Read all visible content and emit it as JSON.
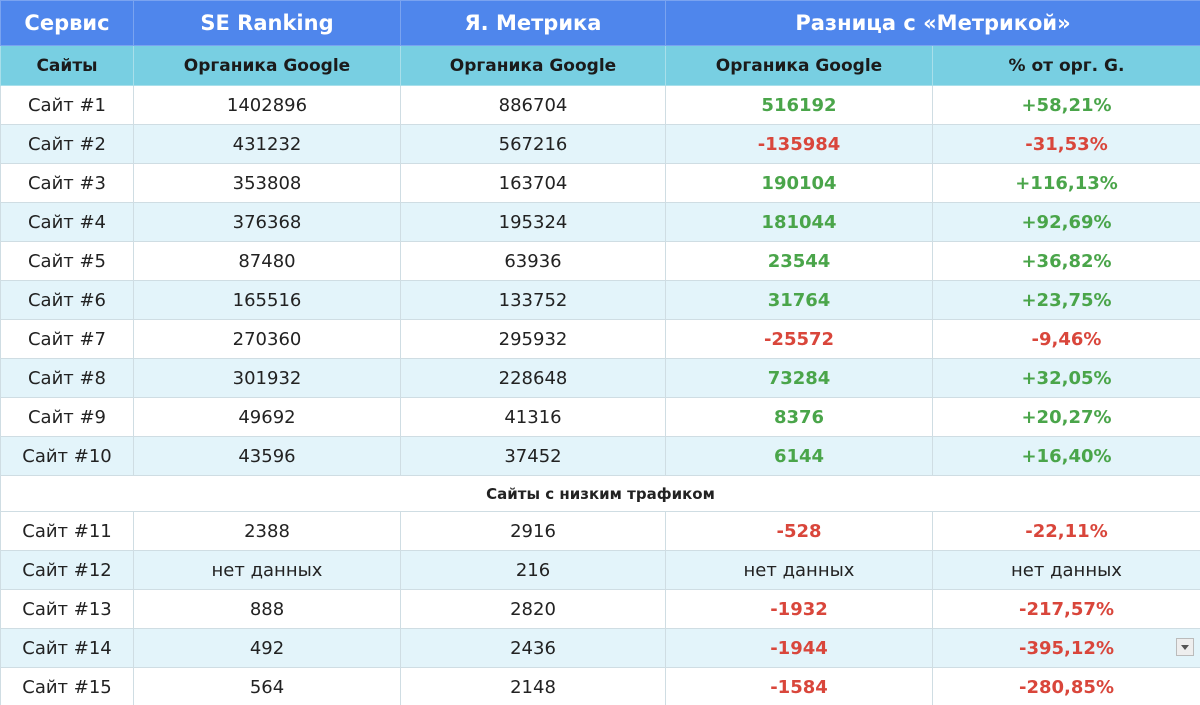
{
  "header": {
    "row1": [
      "Сервис",
      "SE Ranking",
      "Я. Метрика",
      "Разница с «Метрикой»"
    ],
    "row2": [
      "Сайты",
      "Органика Google",
      "Органика Google",
      "Органика Google",
      "% от орг. G."
    ]
  },
  "rows": [
    [
      "Сайт #1",
      "1402896",
      "886704",
      "516192",
      "+58,21%"
    ],
    [
      "Сайт #2",
      "431232",
      "567216",
      "-135984",
      "-31,53%"
    ],
    [
      "Сайт #3",
      "353808",
      "163704",
      "190104",
      "+116,13%"
    ],
    [
      "Сайт #4",
      "376368",
      "195324",
      "181044",
      "+92,69%"
    ],
    [
      "Сайт #5",
      "87480",
      "63936",
      "23544",
      "+36,82%"
    ],
    [
      "Сайт #6",
      "165516",
      "133752",
      "31764",
      "+23,75%"
    ],
    [
      "Сайт #7",
      "270360",
      "295932",
      "-25572",
      "-9,46%"
    ],
    [
      "Сайт #8",
      "301932",
      "228648",
      "73284",
      "+32,05%"
    ],
    [
      "Сайт #9",
      "49692",
      "41316",
      "8376",
      "+20,27%"
    ],
    [
      "Сайт #10",
      "43596",
      "37452",
      "6144",
      "+16,40%"
    ]
  ],
  "section_title": "Сайты с низким трафиком",
  "rows_low": [
    [
      "Сайт #11",
      "2388",
      "2916",
      "-528",
      "-22,11%"
    ],
    [
      "Сайт #12",
      "нет данных",
      "216",
      "нет данных",
      "нет данных"
    ],
    [
      "Сайт #13",
      "888",
      "2820",
      "-1932",
      "-217,57%"
    ],
    [
      "Сайт #14",
      "492",
      "2436",
      "-1944",
      "-395,12%"
    ],
    [
      "Сайт #15",
      "564",
      "2148",
      "-1584",
      "-280,85%"
    ]
  ]
}
